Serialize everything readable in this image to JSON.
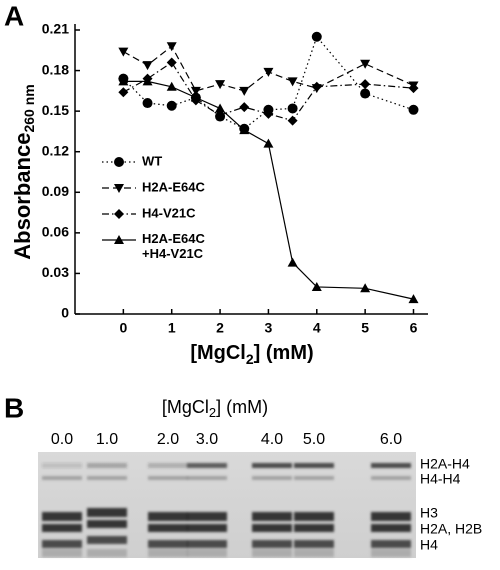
{
  "chart_data": {
    "type": "line",
    "panel_label": "A",
    "y_label": "Absorbance",
    "y_label_sub": "260 nm",
    "x_label_pre": "[MgCl",
    "x_label_sub": "2",
    "x_label_post": "] (mM)",
    "x": [
      0,
      0.5,
      1,
      1.5,
      2,
      2.5,
      3,
      3.5,
      4,
      5,
      6
    ],
    "xlim": [
      -1,
      6.3
    ],
    "xticks": [
      0,
      1,
      2,
      3,
      4,
      5,
      6
    ],
    "ylim": [
      0,
      0.21
    ],
    "yticks": [
      0,
      0.03,
      0.06,
      0.09,
      0.12,
      0.15,
      0.18,
      0.21
    ],
    "legend": "left",
    "grid": false,
    "series": [
      {
        "name": "WT",
        "color": "#000000",
        "marker": "circle",
        "dash": "dotted",
        "values": [
          0.174,
          0.156,
          0.154,
          0.16,
          0.146,
          0.137,
          0.151,
          0.152,
          0.205,
          0.163,
          0.151
        ]
      },
      {
        "name": "H2A-E64C",
        "color": "#000000",
        "marker": "triangle-down",
        "dash": "dashed",
        "values": [
          0.194,
          0.184,
          0.198,
          0.165,
          0.17,
          0.165,
          0.179,
          0.172,
          0.167,
          0.185,
          0.169
        ]
      },
      {
        "name": "H4-V21C",
        "color": "#000000",
        "marker": "diamond",
        "dash": "dashdot",
        "values": [
          0.164,
          0.174,
          0.186,
          0.158,
          0.147,
          0.153,
          0.148,
          0.143,
          0.168,
          0.17,
          0.167
        ]
      },
      {
        "name": "H2A-E64C\n+H4-V21C",
        "color": "#000000",
        "marker": "triangle-up",
        "dash": "solid",
        "values": [
          0.172,
          0.172,
          0.168,
          0.16,
          0.152,
          0.136,
          0.126,
          0.038,
          0.02,
          0.019,
          0.011
        ]
      }
    ]
  },
  "gel": {
    "panel_label": "B",
    "title_pre": "[MgCl",
    "title_sub": "2",
    "title_post": "] (mM)",
    "lanes": [
      "0.0",
      "1.0",
      "2.0",
      "3.0",
      "4.0",
      "5.0",
      "6.0"
    ],
    "bands": [
      "H2A-H4",
      "H4-H4",
      "H3",
      "H2A, H2B",
      "H4"
    ]
  }
}
